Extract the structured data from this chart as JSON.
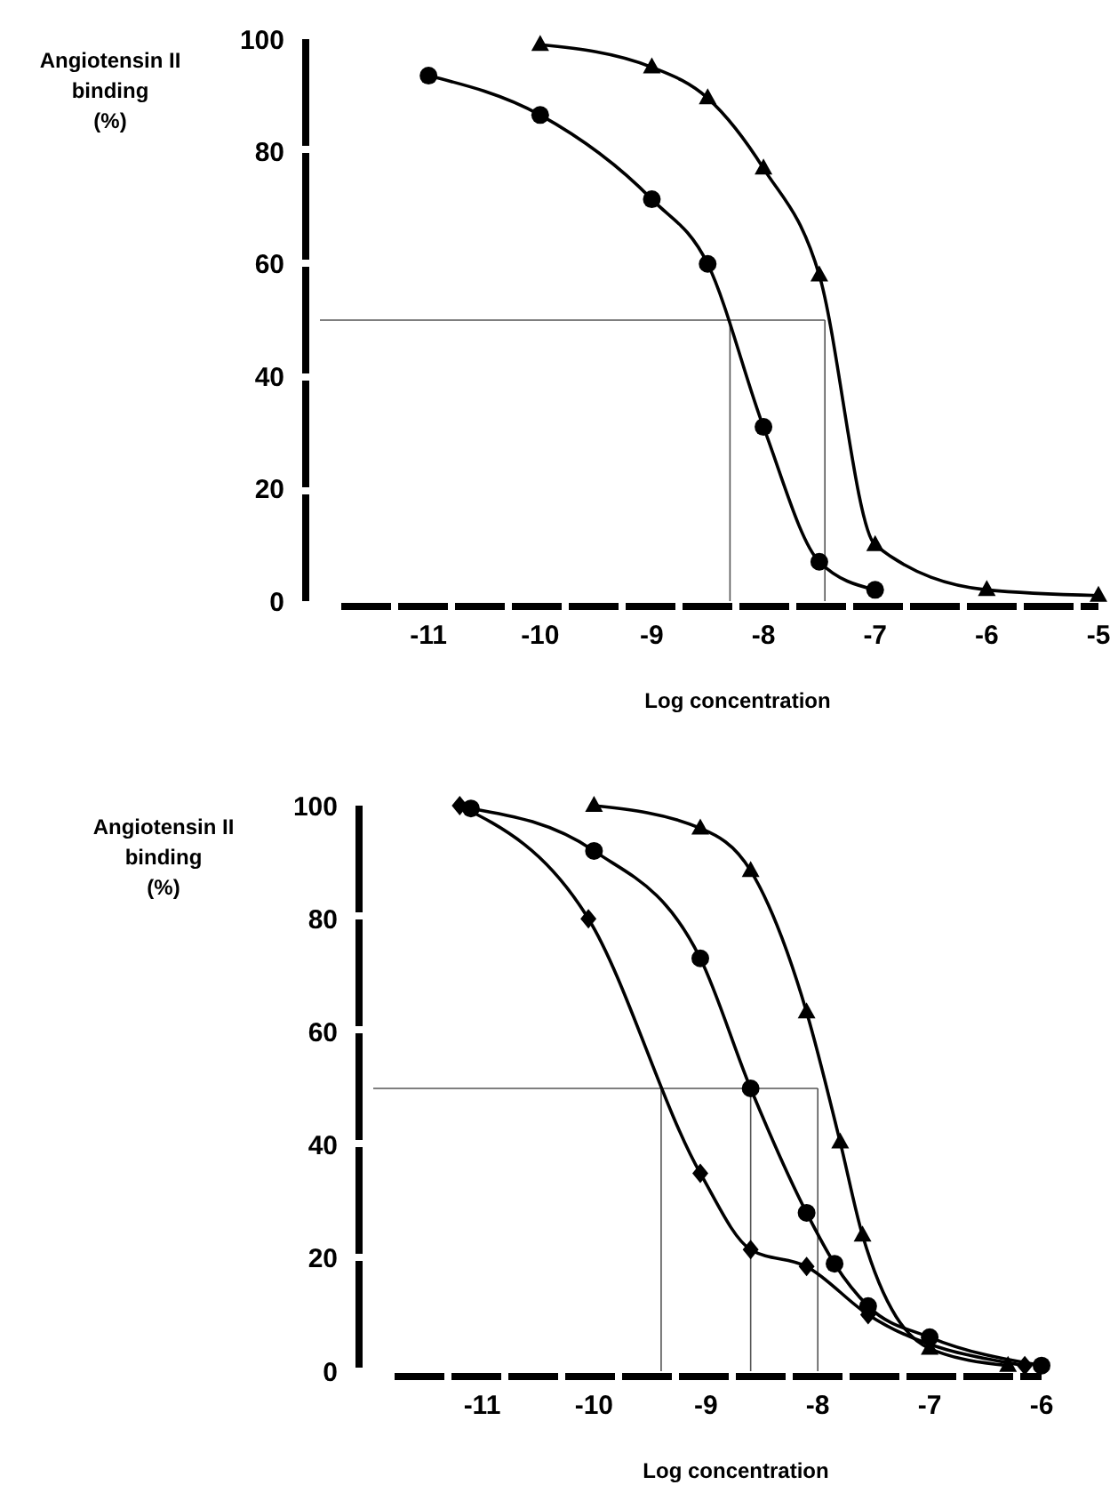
{
  "chart_data": [
    {
      "type": "line",
      "xlabel": "Log concentration",
      "ylabel": "Angiotensin II binding (%)",
      "xlim": [
        -12.1,
        -5
      ],
      "xticks": [
        -11,
        -10,
        -9,
        -8,
        -7,
        -6,
        -5
      ],
      "ylim": [
        0,
        100
      ],
      "yticks": [
        0,
        20,
        40,
        60,
        80,
        100
      ],
      "series": [
        {
          "color": "#000000",
          "marker": "circle",
          "x": [
            -11,
            -10,
            -9,
            -8.5,
            -8,
            -7.5,
            -7
          ],
          "values": [
            93.5,
            86.5,
            71.5,
            60,
            31,
            7,
            2
          ]
        },
        {
          "color": "#000000",
          "marker": "triangle",
          "x": [
            -10,
            -9,
            -8.5,
            -8,
            -7.5,
            -7,
            -6,
            -5
          ],
          "values": [
            99,
            95,
            89.5,
            77,
            58,
            10,
            2,
            1
          ]
        }
      ],
      "ref_lines": [
        {
          "axis": "y",
          "value": 50
        },
        {
          "axis": "x",
          "value": -8.3
        },
        {
          "axis": "x",
          "value": -7.45
        }
      ]
    },
    {
      "type": "line",
      "xlabel": "Log concentration",
      "ylabel": "Angiotensin II binding (%)",
      "xlim": [
        -12.1,
        -6
      ],
      "xticks": [
        -11,
        -10,
        -9,
        -8,
        -7,
        -6
      ],
      "ylim": [
        0,
        100
      ],
      "yticks": [
        0,
        20,
        40,
        60,
        80,
        100
      ],
      "series": [
        {
          "color": "#000000",
          "marker": "triangle",
          "x": [
            -10,
            -9.05,
            -8.6,
            -8.1,
            -7.8,
            -7.6,
            -7,
            -6.3
          ],
          "values": [
            100,
            96,
            88.5,
            63.5,
            40.5,
            24,
            4,
            1
          ]
        },
        {
          "color": "#000000",
          "marker": "circle",
          "x": [
            -11.1,
            -10,
            -9.05,
            -8.6,
            -8.1,
            -7.85,
            -7.55,
            -7,
            -6
          ],
          "values": [
            99.5,
            92,
            73,
            50,
            28,
            19,
            11.5,
            6,
            1
          ]
        },
        {
          "color": "#000000",
          "marker": "diamond",
          "x": [
            -11.2,
            -10.05,
            -9.05,
            -8.6,
            -8.1,
            -7.55,
            -6.15
          ],
          "values": [
            100,
            80,
            35,
            21.5,
            18.5,
            10,
            1
          ]
        }
      ],
      "ref_lines": [
        {
          "axis": "y",
          "value": 50
        },
        {
          "axis": "x",
          "value": -9.4
        },
        {
          "axis": "x",
          "value": -8.6
        },
        {
          "axis": "x",
          "value": -8
        }
      ]
    }
  ]
}
